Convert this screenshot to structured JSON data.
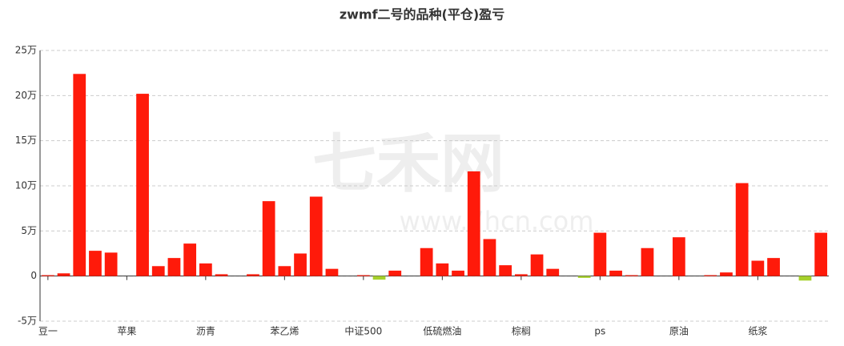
{
  "chart_data": {
    "type": "bar",
    "title": "zwmf二号的品种(平仓)盈亏",
    "watermark": [
      "七禾网",
      "www.7hcn.com"
    ],
    "categories": [
      "豆一",
      null,
      null,
      null,
      null,
      "苹果",
      null,
      null,
      null,
      null,
      "沥青",
      null,
      null,
      null,
      null,
      "苯乙烯",
      null,
      null,
      null,
      null,
      "中证500",
      null,
      null,
      null,
      null,
      "低硫燃油",
      null,
      null,
      null,
      null,
      "棕榈",
      null,
      null,
      null,
      null,
      "ps",
      null,
      null,
      null,
      null,
      "原油",
      null,
      null,
      null,
      null,
      "纸浆",
      null,
      null,
      null,
      null
    ],
    "values": [
      0.1,
      0.3,
      22.4,
      2.8,
      2.6,
      0,
      20.2,
      1.1,
      2.0,
      3.6,
      1.4,
      0.2,
      0,
      0.2,
      8.3,
      1.1,
      2.5,
      8.8,
      0.8,
      0,
      0.1,
      -0.4,
      0.6,
      0,
      3.1,
      1.4,
      0.6,
      11.6,
      4.1,
      1.2,
      0.2,
      2.4,
      0.8,
      0,
      -0.2,
      4.8,
      0.6,
      0.1,
      3.1,
      0,
      4.3,
      0,
      0.1,
      0.4,
      10.3,
      1.7,
      2.0,
      0,
      -0.5,
      4.8
    ],
    "positive_color": "#ff1a0a",
    "negative_color": "#a6d12b",
    "ylim": [
      -5,
      25
    ],
    "yticks": [
      {
        "value": -5,
        "label": "-5万"
      },
      0,
      {
        "value": 5,
        "label": "5万"
      },
      {
        "value": 10,
        "label": "10万"
      },
      {
        "value": 15,
        "label": "15万"
      },
      {
        "value": 20,
        "label": "20万"
      },
      {
        "value": 25,
        "label": "25万"
      }
    ],
    "grid": true
  }
}
